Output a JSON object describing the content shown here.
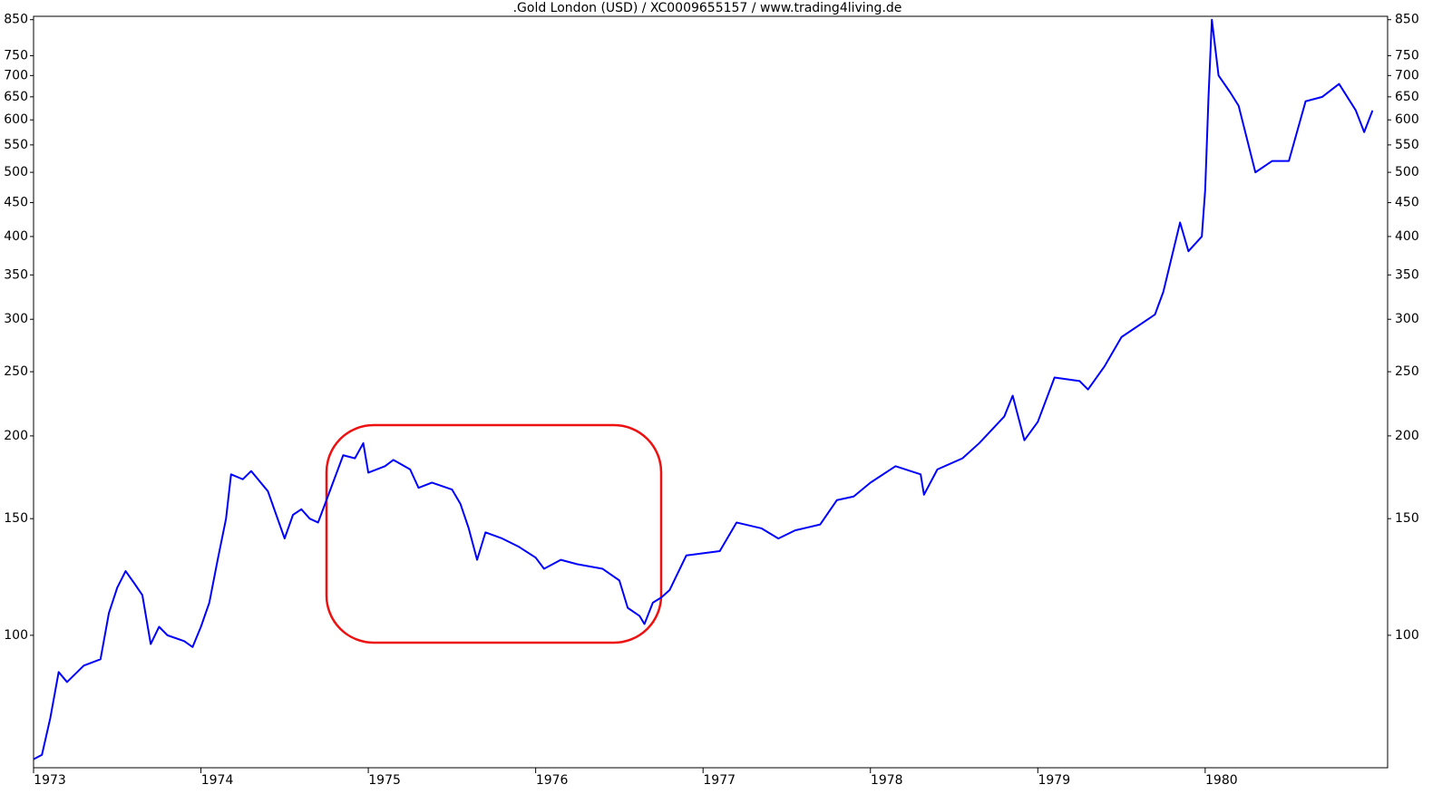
{
  "chart_data": {
    "type": "line",
    "title": ".Gold London (USD) / XC0009655157 / www.trading4living.de",
    "x": [
      1973.0,
      1973.05,
      1973.1,
      1973.15,
      1973.2,
      1973.3,
      1973.4,
      1973.45,
      1973.5,
      1973.55,
      1973.6,
      1973.65,
      1973.7,
      1973.75,
      1973.8,
      1973.9,
      1973.95,
      1974.0,
      1974.05,
      1974.1,
      1974.15,
      1974.18,
      1974.25,
      1974.3,
      1974.4,
      1974.45,
      1974.5,
      1974.55,
      1974.6,
      1974.65,
      1974.7,
      1974.75,
      1974.85,
      1974.92,
      1974.97,
      1975.0,
      1975.1,
      1975.15,
      1975.25,
      1975.3,
      1975.38,
      1975.5,
      1975.55,
      1975.6,
      1975.65,
      1975.7,
      1975.8,
      1975.9,
      1976.0,
      1976.05,
      1976.15,
      1976.25,
      1976.4,
      1976.5,
      1976.55,
      1976.62,
      1976.65,
      1976.7,
      1976.75,
      1976.8,
      1976.9,
      1977.0,
      1977.1,
      1977.2,
      1977.35,
      1977.45,
      1977.55,
      1977.7,
      1977.8,
      1977.9,
      1978.0,
      1978.15,
      1978.3,
      1978.32,
      1978.4,
      1978.55,
      1978.65,
      1978.8,
      1978.85,
      1978.92,
      1979.0,
      1979.1,
      1979.25,
      1979.3,
      1979.4,
      1979.5,
      1979.7,
      1979.75,
      1979.85,
      1979.9,
      1979.98,
      1980.0,
      1980.02,
      1980.04,
      1980.08,
      1980.15,
      1980.2,
      1980.3,
      1980.4,
      1980.5,
      1980.6,
      1980.7,
      1980.8,
      1980.9,
      1980.95,
      1981.0
    ],
    "values": [
      65,
      66,
      75,
      88,
      85,
      90,
      92,
      108,
      118,
      125,
      120,
      115,
      97,
      103,
      100,
      98,
      96,
      103,
      112,
      130,
      150,
      175,
      172,
      177,
      165,
      152,
      140,
      152,
      155,
      150,
      148,
      160,
      187,
      185,
      195,
      176,
      180,
      184,
      178,
      167,
      170,
      166,
      158,
      145,
      130,
      143,
      140,
      136,
      131,
      126,
      130,
      128,
      126,
      121,
      110,
      107,
      104,
      112,
      114,
      117,
      132,
      133,
      134,
      148,
      145,
      140,
      144,
      147,
      160,
      162,
      170,
      180,
      175,
      163,
      178,
      185,
      195,
      214,
      230,
      197,
      210,
      245,
      242,
      235,
      255,
      282,
      305,
      330,
      420,
      380,
      400,
      470,
      650,
      850,
      700,
      660,
      630,
      500,
      520,
      520,
      640,
      650,
      680,
      620,
      575,
      620
    ],
    "color": "#0000ff",
    "log_scale": true,
    "xlim": [
      1973,
      1981.09
    ],
    "xticks": [
      1973,
      1974,
      1975,
      1976,
      1977,
      1978,
      1979,
      1980
    ],
    "ylim": [
      63.1,
      860
    ],
    "yticks": [
      100,
      150,
      200,
      250,
      300,
      350,
      400,
      450,
      500,
      550,
      600,
      650,
      700,
      750,
      850
    ]
  }
}
